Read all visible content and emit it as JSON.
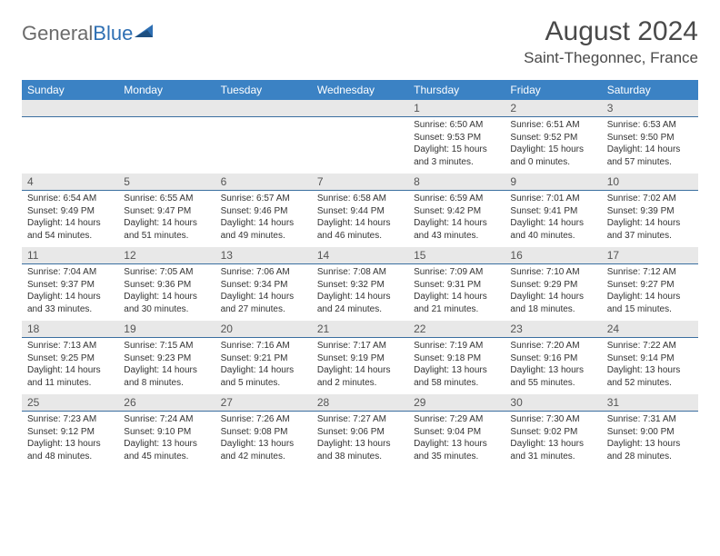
{
  "colors": {
    "header_bg": "#3b82c4",
    "header_text": "#ffffff",
    "daynum_bg": "#e8e8e8",
    "daynum_border": "#3b6fa0",
    "body_text": "#333333",
    "logo_gray": "#6b6b6b",
    "logo_blue": "#2e6fb3"
  },
  "logo": {
    "part1": "General",
    "part2": "Blue"
  },
  "title": "August 2024",
  "location": "Saint-Thegonnec, France",
  "day_names": [
    "Sunday",
    "Monday",
    "Tuesday",
    "Wednesday",
    "Thursday",
    "Friday",
    "Saturday"
  ],
  "weeks": [
    {
      "nums": [
        "",
        "",
        "",
        "",
        "1",
        "2",
        "3"
      ],
      "cells": [
        null,
        null,
        null,
        null,
        {
          "sunrise": "Sunrise: 6:50 AM",
          "sunset": "Sunset: 9:53 PM",
          "dl1": "Daylight: 15 hours",
          "dl2": "and 3 minutes."
        },
        {
          "sunrise": "Sunrise: 6:51 AM",
          "sunset": "Sunset: 9:52 PM",
          "dl1": "Daylight: 15 hours",
          "dl2": "and 0 minutes."
        },
        {
          "sunrise": "Sunrise: 6:53 AM",
          "sunset": "Sunset: 9:50 PM",
          "dl1": "Daylight: 14 hours",
          "dl2": "and 57 minutes."
        }
      ]
    },
    {
      "nums": [
        "4",
        "5",
        "6",
        "7",
        "8",
        "9",
        "10"
      ],
      "cells": [
        {
          "sunrise": "Sunrise: 6:54 AM",
          "sunset": "Sunset: 9:49 PM",
          "dl1": "Daylight: 14 hours",
          "dl2": "and 54 minutes."
        },
        {
          "sunrise": "Sunrise: 6:55 AM",
          "sunset": "Sunset: 9:47 PM",
          "dl1": "Daylight: 14 hours",
          "dl2": "and 51 minutes."
        },
        {
          "sunrise": "Sunrise: 6:57 AM",
          "sunset": "Sunset: 9:46 PM",
          "dl1": "Daylight: 14 hours",
          "dl2": "and 49 minutes."
        },
        {
          "sunrise": "Sunrise: 6:58 AM",
          "sunset": "Sunset: 9:44 PM",
          "dl1": "Daylight: 14 hours",
          "dl2": "and 46 minutes."
        },
        {
          "sunrise": "Sunrise: 6:59 AM",
          "sunset": "Sunset: 9:42 PM",
          "dl1": "Daylight: 14 hours",
          "dl2": "and 43 minutes."
        },
        {
          "sunrise": "Sunrise: 7:01 AM",
          "sunset": "Sunset: 9:41 PM",
          "dl1": "Daylight: 14 hours",
          "dl2": "and 40 minutes."
        },
        {
          "sunrise": "Sunrise: 7:02 AM",
          "sunset": "Sunset: 9:39 PM",
          "dl1": "Daylight: 14 hours",
          "dl2": "and 37 minutes."
        }
      ]
    },
    {
      "nums": [
        "11",
        "12",
        "13",
        "14",
        "15",
        "16",
        "17"
      ],
      "cells": [
        {
          "sunrise": "Sunrise: 7:04 AM",
          "sunset": "Sunset: 9:37 PM",
          "dl1": "Daylight: 14 hours",
          "dl2": "and 33 minutes."
        },
        {
          "sunrise": "Sunrise: 7:05 AM",
          "sunset": "Sunset: 9:36 PM",
          "dl1": "Daylight: 14 hours",
          "dl2": "and 30 minutes."
        },
        {
          "sunrise": "Sunrise: 7:06 AM",
          "sunset": "Sunset: 9:34 PM",
          "dl1": "Daylight: 14 hours",
          "dl2": "and 27 minutes."
        },
        {
          "sunrise": "Sunrise: 7:08 AM",
          "sunset": "Sunset: 9:32 PM",
          "dl1": "Daylight: 14 hours",
          "dl2": "and 24 minutes."
        },
        {
          "sunrise": "Sunrise: 7:09 AM",
          "sunset": "Sunset: 9:31 PM",
          "dl1": "Daylight: 14 hours",
          "dl2": "and 21 minutes."
        },
        {
          "sunrise": "Sunrise: 7:10 AM",
          "sunset": "Sunset: 9:29 PM",
          "dl1": "Daylight: 14 hours",
          "dl2": "and 18 minutes."
        },
        {
          "sunrise": "Sunrise: 7:12 AM",
          "sunset": "Sunset: 9:27 PM",
          "dl1": "Daylight: 14 hours",
          "dl2": "and 15 minutes."
        }
      ]
    },
    {
      "nums": [
        "18",
        "19",
        "20",
        "21",
        "22",
        "23",
        "24"
      ],
      "cells": [
        {
          "sunrise": "Sunrise: 7:13 AM",
          "sunset": "Sunset: 9:25 PM",
          "dl1": "Daylight: 14 hours",
          "dl2": "and 11 minutes."
        },
        {
          "sunrise": "Sunrise: 7:15 AM",
          "sunset": "Sunset: 9:23 PM",
          "dl1": "Daylight: 14 hours",
          "dl2": "and 8 minutes."
        },
        {
          "sunrise": "Sunrise: 7:16 AM",
          "sunset": "Sunset: 9:21 PM",
          "dl1": "Daylight: 14 hours",
          "dl2": "and 5 minutes."
        },
        {
          "sunrise": "Sunrise: 7:17 AM",
          "sunset": "Sunset: 9:19 PM",
          "dl1": "Daylight: 14 hours",
          "dl2": "and 2 minutes."
        },
        {
          "sunrise": "Sunrise: 7:19 AM",
          "sunset": "Sunset: 9:18 PM",
          "dl1": "Daylight: 13 hours",
          "dl2": "and 58 minutes."
        },
        {
          "sunrise": "Sunrise: 7:20 AM",
          "sunset": "Sunset: 9:16 PM",
          "dl1": "Daylight: 13 hours",
          "dl2": "and 55 minutes."
        },
        {
          "sunrise": "Sunrise: 7:22 AM",
          "sunset": "Sunset: 9:14 PM",
          "dl1": "Daylight: 13 hours",
          "dl2": "and 52 minutes."
        }
      ]
    },
    {
      "nums": [
        "25",
        "26",
        "27",
        "28",
        "29",
        "30",
        "31"
      ],
      "cells": [
        {
          "sunrise": "Sunrise: 7:23 AM",
          "sunset": "Sunset: 9:12 PM",
          "dl1": "Daylight: 13 hours",
          "dl2": "and 48 minutes."
        },
        {
          "sunrise": "Sunrise: 7:24 AM",
          "sunset": "Sunset: 9:10 PM",
          "dl1": "Daylight: 13 hours",
          "dl2": "and 45 minutes."
        },
        {
          "sunrise": "Sunrise: 7:26 AM",
          "sunset": "Sunset: 9:08 PM",
          "dl1": "Daylight: 13 hours",
          "dl2": "and 42 minutes."
        },
        {
          "sunrise": "Sunrise: 7:27 AM",
          "sunset": "Sunset: 9:06 PM",
          "dl1": "Daylight: 13 hours",
          "dl2": "and 38 minutes."
        },
        {
          "sunrise": "Sunrise: 7:29 AM",
          "sunset": "Sunset: 9:04 PM",
          "dl1": "Daylight: 13 hours",
          "dl2": "and 35 minutes."
        },
        {
          "sunrise": "Sunrise: 7:30 AM",
          "sunset": "Sunset: 9:02 PM",
          "dl1": "Daylight: 13 hours",
          "dl2": "and 31 minutes."
        },
        {
          "sunrise": "Sunrise: 7:31 AM",
          "sunset": "Sunset: 9:00 PM",
          "dl1": "Daylight: 13 hours",
          "dl2": "and 28 minutes."
        }
      ]
    }
  ]
}
